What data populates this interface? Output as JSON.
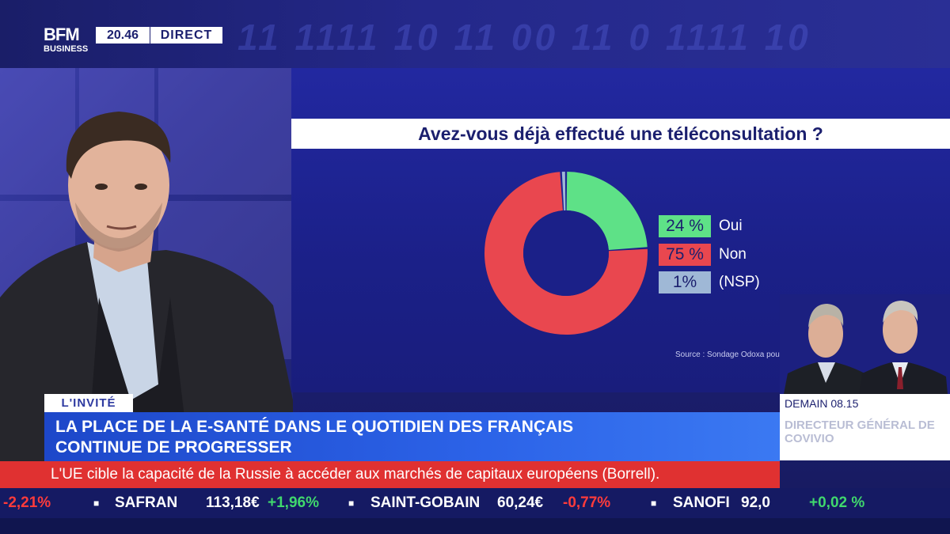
{
  "header": {
    "logo_main": "BFM",
    "logo_sub": "BUSINESS",
    "clock": "20.46",
    "live_label": "DIRECT",
    "ghost_ticker": "11 1111 10   11 00 11 0 1111 10"
  },
  "graphic": {
    "question": "Avez-vous déjà effectué une téléconsultation ?",
    "source": "Source : Sondage Odoxa pour BFM Business"
  },
  "chart_data": {
    "type": "pie",
    "title": "Avez-vous déjà effectué une téléconsultation ?",
    "slices": [
      {
        "label": "Oui",
        "display": "24 %",
        "value": 24,
        "color": "#5ee187"
      },
      {
        "label": "Non",
        "display": "75 %",
        "value": 75,
        "color": "#e9474f"
      },
      {
        "label": "(NSP)",
        "display": "1%",
        "value": 1,
        "color": "#9fb8d6"
      }
    ],
    "legend_placement": "right"
  },
  "promo": {
    "time": "DEMAIN 08.15",
    "role": "DIRECTEUR GÉNÉRAL DE COVIVIO"
  },
  "lower_third": {
    "tag": "L'INVITÉ",
    "headline_line1": "LA PLACE DE LA E-SANTÉ DANS LE QUOTIDIEN DES FRANÇAIS",
    "headline_line2": "CONTINUE DE PROGRESSER"
  },
  "news": {
    "text": "L'UE cible la capacité de la Russie à accéder aux marchés de capitaux européens (Borrell)."
  },
  "ticker": [
    {
      "kind": "change-down",
      "text": "-2,21%"
    },
    {
      "kind": "name",
      "text": "SAFRAN"
    },
    {
      "kind": "price",
      "text": "113,18€"
    },
    {
      "kind": "change-up",
      "text": "+1,96%"
    },
    {
      "kind": "name",
      "text": "SAINT-GOBAIN"
    },
    {
      "kind": "price",
      "text": "60,24€"
    },
    {
      "kind": "change-down",
      "text": "-0,77%"
    },
    {
      "kind": "name",
      "text": "SANOFI"
    },
    {
      "kind": "price",
      "text": "92,0"
    },
    {
      "kind": "change-up",
      "text": "+0,02 %"
    }
  ],
  "colors": {
    "navy": "#1b1f6e",
    "accent_blue": "#2c63e8",
    "news_red": "#e03131",
    "up": "#40d86d",
    "down": "#ff3b3b"
  }
}
